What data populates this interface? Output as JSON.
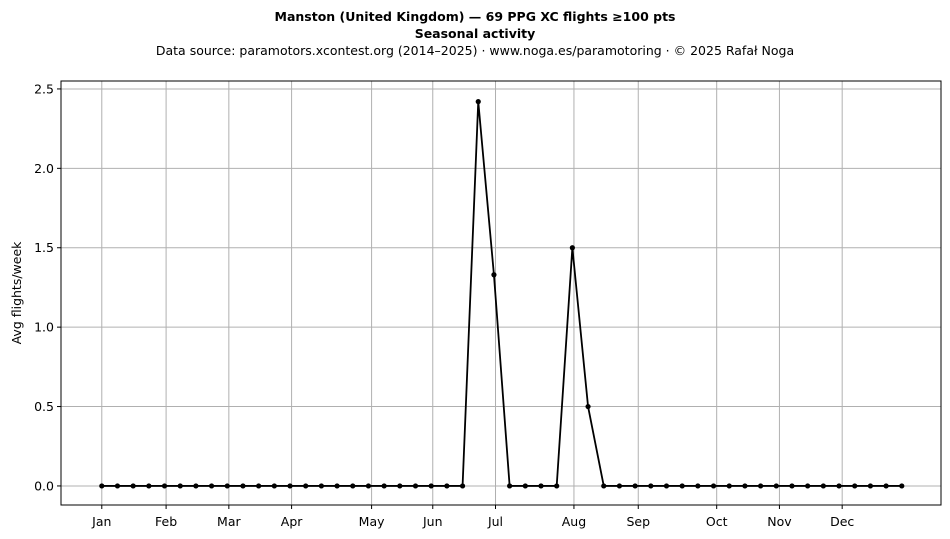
{
  "chart_data": {
    "type": "line",
    "title": "Manston (United Kingdom)  —  69 PPG XC flights ≥100 pts",
    "subtitle": "Seasonal activity",
    "source_note": "Data source: paramotors.xcontest.org (2014–2025)  ·  www.noga.es/paramotoring  ·  © 2025 Rafał Noga",
    "xlabel": "",
    "ylabel": "Avg flights/week",
    "x_unit": "week of year",
    "xlim": [
      -1.6,
      54.5
    ],
    "ylim": [
      -0.12,
      2.55
    ],
    "yticks": [
      0.0,
      0.5,
      1.0,
      1.5,
      2.0,
      2.5
    ],
    "ytick_labels": [
      "0.0",
      "0.5",
      "1.0",
      "1.5",
      "2.0",
      "2.5"
    ],
    "xticks": [
      {
        "label": "Jan",
        "week": 1
      },
      {
        "label": "Feb",
        "week": 5.1
      },
      {
        "label": "Mar",
        "week": 9.1
      },
      {
        "label": "Apr",
        "week": 13.1
      },
      {
        "label": "May",
        "week": 18.2
      },
      {
        "label": "Jun",
        "week": 22.1
      },
      {
        "label": "Jul",
        "week": 26.1
      },
      {
        "label": "Aug",
        "week": 31.1
      },
      {
        "label": "Sep",
        "week": 35.2
      },
      {
        "label": "Oct",
        "week": 40.2
      },
      {
        "label": "Nov",
        "week": 44.2
      },
      {
        "label": "Dec",
        "week": 48.2
      }
    ],
    "grid": true,
    "series": [
      {
        "color": "#000000",
        "marker": "dot",
        "x": [
          1,
          2,
          3,
          4,
          5,
          6,
          7,
          8,
          9,
          10,
          11,
          12,
          13,
          14,
          15,
          16,
          17,
          18,
          19,
          20,
          21,
          22,
          23,
          24,
          25,
          26,
          27,
          28,
          29,
          30,
          31,
          32,
          33,
          34,
          35,
          36,
          37,
          38,
          39,
          40,
          41,
          42,
          43,
          44,
          45,
          46,
          47,
          48,
          49,
          50,
          51,
          52
        ],
        "values": [
          0,
          0,
          0,
          0,
          0,
          0,
          0,
          0,
          0,
          0,
          0,
          0,
          0,
          0,
          0,
          0,
          0,
          0,
          0,
          0,
          0,
          0,
          0,
          0,
          2.42,
          1.33,
          0,
          0,
          0,
          0,
          1.5,
          0.5,
          0,
          0,
          0,
          0,
          0,
          0,
          0,
          0,
          0,
          0,
          0,
          0,
          0,
          0,
          0,
          0,
          0,
          0,
          0,
          0
        ]
      }
    ]
  }
}
